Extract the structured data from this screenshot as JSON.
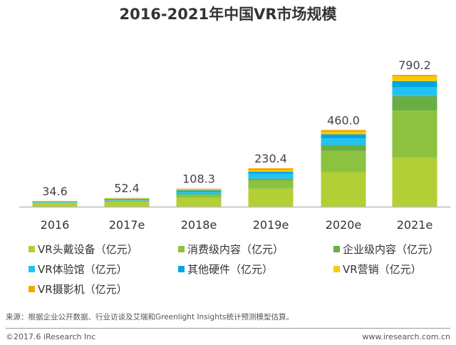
{
  "chart_data": {
    "type": "bar",
    "stacked": true,
    "title": "2016-2021年中国VR市场规模",
    "xlabel": "",
    "ylabel": "",
    "grid": false,
    "legend_position": "bottom",
    "categories": [
      "2016",
      "2017e",
      "2018e",
      "2019e",
      "2020e",
      "2021e"
    ],
    "totals": [
      "34.6",
      "52.4",
      "108.3",
      "230.4",
      "460.0",
      "790.2"
    ],
    "series": [
      {
        "name": "VR头戴设备（亿元）",
        "color": "#b2cf35",
        "values": [
          22,
          30,
          55,
          108,
          207,
          295
        ]
      },
      {
        "name": "消费级内容（亿元）",
        "color": "#8cc23f",
        "values": [
          3,
          5,
          15,
          50,
          128,
          281
        ]
      },
      {
        "name": "企业级内容（亿元）",
        "color": "#6aad45",
        "values": [
          1.5,
          2,
          5,
          10,
          34.6,
          87
        ]
      },
      {
        "name": "VR体验馆（亿元）",
        "color": "#22c3f0",
        "values": [
          4,
          7,
          15,
          30,
          40,
          53
        ]
      },
      {
        "name": "其他硬件（亿元）",
        "color": "#00a6e0",
        "values": [
          2,
          4,
          8,
          11.5,
          24.4,
          37
        ]
      },
      {
        "name": "VR营销（亿元）",
        "color": "#fcc900",
        "values": [
          1.5,
          3,
          6,
          8.6,
          14.4,
          28.6
        ]
      },
      {
        "name": "VR摄影机（亿元）",
        "color": "#f5a800",
        "values": [
          0.6,
          1.4,
          4.3,
          12.3,
          11.6,
          8.6
        ]
      }
    ]
  },
  "source": "来源：根据企业公开数据、行业访谈及艾瑞和Greenlight Insights统计预测模型估算。",
  "copyright": "©2017.6 iResearch Inc",
  "website": "www.iresearch.com.cn"
}
